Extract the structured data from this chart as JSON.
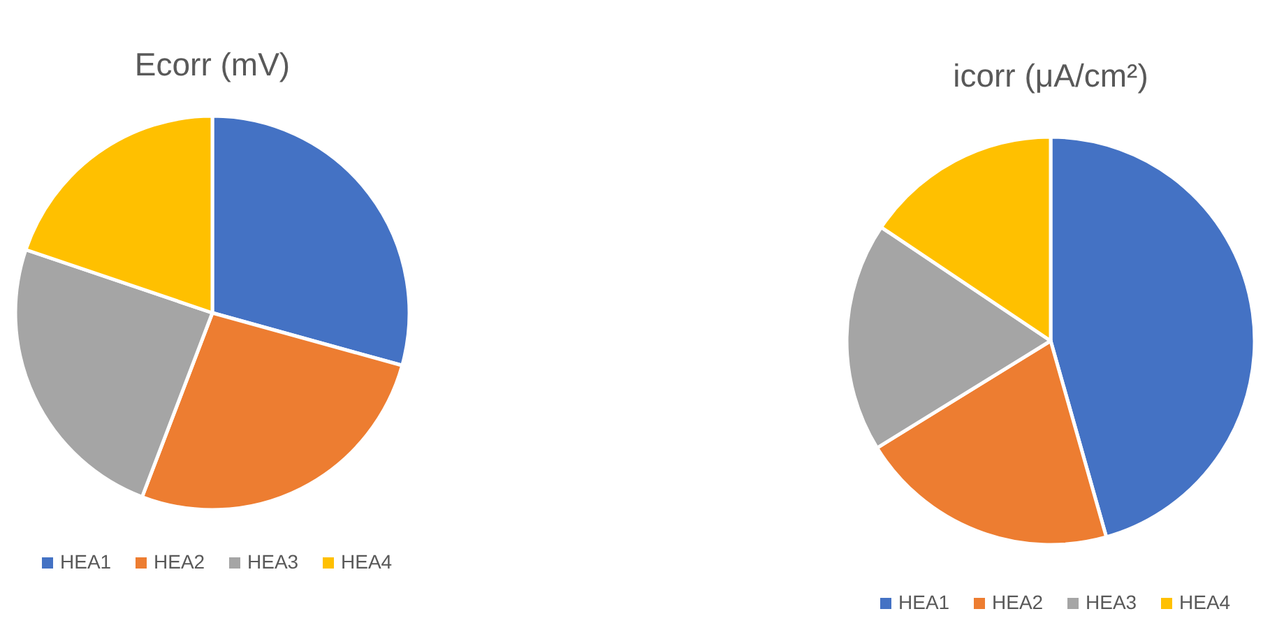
{
  "chart_data": [
    {
      "type": "pie",
      "title": "Ecorr (mV)",
      "categories": [
        "HEA1",
        "HEA2",
        "HEA3",
        "HEA4"
      ],
      "values": [
        29.3,
        26.5,
        24.4,
        19.8
      ],
      "colors": [
        "#4472c4",
        "#ed7d31",
        "#a5a5a5",
        "#ffc000"
      ],
      "legend": "bottom"
    },
    {
      "type": "pie",
      "title": "icorr (μA/cm²)",
      "categories": [
        "HEA1",
        "HEA2",
        "HEA3",
        "HEA4"
      ],
      "values": [
        45.6,
        20.6,
        18.2,
        15.6
      ],
      "colors": [
        "#4472c4",
        "#ed7d31",
        "#a5a5a5",
        "#ffc000"
      ],
      "legend": "bottom"
    }
  ]
}
